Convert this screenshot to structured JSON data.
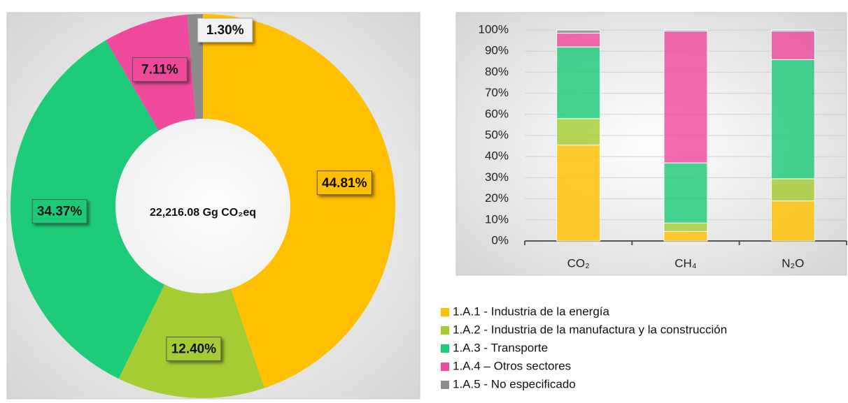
{
  "chart_data": [
    {
      "type": "donut",
      "center_label": "22,216.08 Gg CO₂eq",
      "categories": [
        "1.A.1 - Industria de la energía",
        "1.A.2 - Industria de la manufactura y la construcción",
        "1.A.3 - Transporte",
        "1.A.4 – Otros sectores",
        "1.A.5 - No especificado"
      ],
      "values": [
        44.81,
        12.4,
        34.37,
        7.11,
        1.3
      ],
      "value_labels": [
        "44.81%",
        "12.40%",
        "34.37%",
        "7.11%",
        "1.30%"
      ],
      "colors": [
        "#ffc000",
        "#a5cc33",
        "#1ecb78",
        "#ef4a9e",
        "#8c8c8c"
      ]
    },
    {
      "type": "stacked_bar",
      "categories": [
        "CO₂",
        "CH₄",
        "N₂O"
      ],
      "ylim": [
        0,
        100
      ],
      "yticks": [
        {
          "value": 0,
          "label": "0%"
        },
        {
          "value": 10,
          "label": "10%"
        },
        {
          "value": 20,
          "label": "20%"
        },
        {
          "value": 30,
          "label": "30%"
        },
        {
          "value": 40,
          "label": "40%"
        },
        {
          "value": 50,
          "label": "50%"
        },
        {
          "value": 60,
          "label": "60%"
        },
        {
          "value": 70,
          "label": "70%"
        },
        {
          "value": 80,
          "label": "80%"
        },
        {
          "value": 90,
          "label": "90%"
        },
        {
          "value": 100,
          "label": "100%"
        }
      ],
      "grid": true,
      "series": [
        {
          "name": "1.A.1 - Industria de la energía",
          "color": "#ffc000",
          "values": [
            45.5,
            4.5,
            19
          ]
        },
        {
          "name": "1.A.2 - Industria de la manufactura y la construcción",
          "color": "#a5cc33",
          "values": [
            12.5,
            4,
            10.5
          ]
        },
        {
          "name": "1.A.3 - Transporte",
          "color": "#1ecb78",
          "values": [
            34,
            28.5,
            56.5
          ]
        },
        {
          "name": "1.A.4 – Otros sectores",
          "color": "#ef4a9e",
          "values": [
            6.5,
            62.5,
            13.5
          ]
        },
        {
          "name": "1.A.5 - No especificado",
          "color": "#8c8c8c",
          "values": [
            1.5,
            0.5,
            0.5
          ]
        }
      ]
    }
  ]
}
